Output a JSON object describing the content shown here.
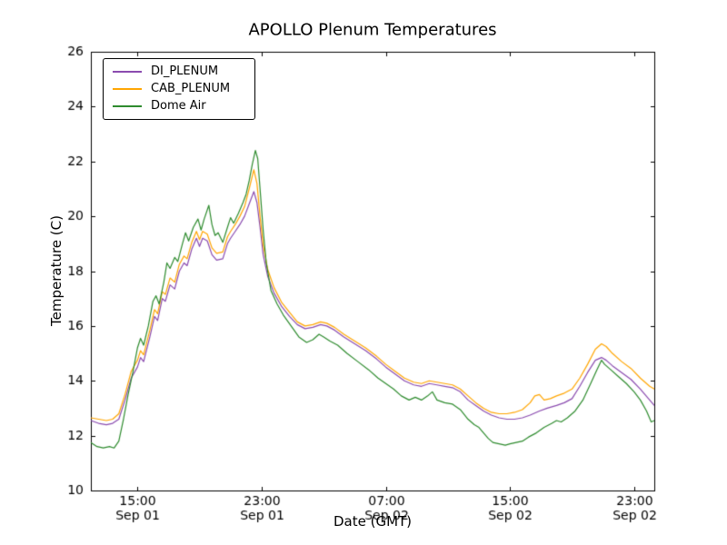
{
  "chart_data": {
    "type": "line",
    "title": "APOLLO Plenum Temperatures",
    "xlabel": "Date (GMT)",
    "ylabel": "Temperature (C)",
    "x_unit": "hours since Sep 01 12:00 GMT",
    "xlim": [
      0,
      36.3
    ],
    "ylim": [
      10,
      26
    ],
    "grid": false,
    "yticks": [
      10,
      12,
      14,
      16,
      18,
      20,
      22,
      24,
      26
    ],
    "xticks": [
      {
        "pos": 3,
        "time": "15:00",
        "date": "Sep 01"
      },
      {
        "pos": 11,
        "time": "23:00",
        "date": "Sep 01"
      },
      {
        "pos": 19,
        "time": "07:00",
        "date": "Sep 02"
      },
      {
        "pos": 27,
        "time": "15:00",
        "date": "Sep 02"
      },
      {
        "pos": 35,
        "time": "23:00",
        "date": "Sep 02"
      }
    ],
    "legend": {
      "position": "upper-left"
    },
    "series": [
      {
        "name": "DI_PLENUM",
        "color": "#8a4baf",
        "points": [
          [
            0,
            12.55
          ],
          [
            0.5,
            12.45
          ],
          [
            1,
            12.4
          ],
          [
            1.4,
            12.45
          ],
          [
            1.8,
            12.6
          ],
          [
            2.2,
            13.3
          ],
          [
            2.6,
            14.1
          ],
          [
            3,
            14.5
          ],
          [
            3.2,
            14.85
          ],
          [
            3.4,
            14.7
          ],
          [
            3.8,
            15.6
          ],
          [
            4.1,
            16.35
          ],
          [
            4.3,
            16.2
          ],
          [
            4.6,
            17.0
          ],
          [
            4.8,
            16.9
          ],
          [
            5.1,
            17.5
          ],
          [
            5.4,
            17.35
          ],
          [
            5.7,
            18.0
          ],
          [
            6,
            18.3
          ],
          [
            6.2,
            18.2
          ],
          [
            6.5,
            18.8
          ],
          [
            6.8,
            19.2
          ],
          [
            7,
            18.9
          ],
          [
            7.2,
            19.2
          ],
          [
            7.5,
            19.1
          ],
          [
            7.8,
            18.6
          ],
          [
            8.1,
            18.4
          ],
          [
            8.5,
            18.45
          ],
          [
            8.8,
            19.0
          ],
          [
            9,
            19.2
          ],
          [
            9.3,
            19.45
          ],
          [
            9.6,
            19.7
          ],
          [
            9.9,
            20.0
          ],
          [
            10.2,
            20.45
          ],
          [
            10.5,
            20.9
          ],
          [
            10.7,
            20.5
          ],
          [
            10.9,
            19.6
          ],
          [
            11.1,
            18.6
          ],
          [
            11.4,
            17.8
          ],
          [
            11.8,
            17.2
          ],
          [
            12.3,
            16.7
          ],
          [
            12.8,
            16.35
          ],
          [
            13.3,
            16.05
          ],
          [
            13.8,
            15.9
          ],
          [
            14.3,
            15.95
          ],
          [
            14.8,
            16.05
          ],
          [
            15.2,
            16.0
          ],
          [
            15.7,
            15.85
          ],
          [
            16.3,
            15.6
          ],
          [
            17,
            15.35
          ],
          [
            17.7,
            15.1
          ],
          [
            18.4,
            14.8
          ],
          [
            19,
            14.5
          ],
          [
            19.6,
            14.25
          ],
          [
            20.2,
            14.0
          ],
          [
            20.8,
            13.85
          ],
          [
            21.3,
            13.8
          ],
          [
            21.8,
            13.9
          ],
          [
            22.3,
            13.85
          ],
          [
            22.8,
            13.8
          ],
          [
            23.3,
            13.75
          ],
          [
            23.8,
            13.6
          ],
          [
            24.3,
            13.3
          ],
          [
            24.8,
            13.1
          ],
          [
            25.3,
            12.9
          ],
          [
            25.8,
            12.75
          ],
          [
            26.3,
            12.65
          ],
          [
            26.8,
            12.6
          ],
          [
            27.3,
            12.6
          ],
          [
            27.8,
            12.65
          ],
          [
            28.3,
            12.75
          ],
          [
            28.9,
            12.9
          ],
          [
            29.4,
            13.0
          ],
          [
            30,
            13.1
          ],
          [
            30.5,
            13.2
          ],
          [
            31,
            13.35
          ],
          [
            31.5,
            13.8
          ],
          [
            32,
            14.3
          ],
          [
            32.5,
            14.75
          ],
          [
            32.9,
            14.85
          ],
          [
            33.2,
            14.75
          ],
          [
            33.6,
            14.55
          ],
          [
            34.2,
            14.3
          ],
          [
            34.8,
            14.05
          ],
          [
            35.4,
            13.7
          ],
          [
            36,
            13.3
          ],
          [
            36.3,
            13.1
          ]
        ]
      },
      {
        "name": "CAB_PLENUM",
        "color": "#ffa500",
        "points": [
          [
            0,
            12.65
          ],
          [
            0.5,
            12.6
          ],
          [
            1,
            12.55
          ],
          [
            1.4,
            12.6
          ],
          [
            1.8,
            12.8
          ],
          [
            2.2,
            13.5
          ],
          [
            2.6,
            14.35
          ],
          [
            3,
            14.75
          ],
          [
            3.2,
            15.1
          ],
          [
            3.4,
            14.95
          ],
          [
            3.8,
            15.85
          ],
          [
            4.1,
            16.6
          ],
          [
            4.3,
            16.45
          ],
          [
            4.6,
            17.25
          ],
          [
            4.8,
            17.15
          ],
          [
            5.1,
            17.75
          ],
          [
            5.4,
            17.6
          ],
          [
            5.7,
            18.25
          ],
          [
            6,
            18.55
          ],
          [
            6.2,
            18.45
          ],
          [
            6.5,
            19.05
          ],
          [
            6.8,
            19.45
          ],
          [
            7,
            19.15
          ],
          [
            7.2,
            19.45
          ],
          [
            7.5,
            19.35
          ],
          [
            7.8,
            18.85
          ],
          [
            8.1,
            18.65
          ],
          [
            8.5,
            18.7
          ],
          [
            8.8,
            19.25
          ],
          [
            9,
            19.45
          ],
          [
            9.3,
            19.7
          ],
          [
            9.6,
            20.0
          ],
          [
            9.9,
            20.35
          ],
          [
            10.2,
            21.0
          ],
          [
            10.5,
            21.7
          ],
          [
            10.7,
            21.2
          ],
          [
            10.9,
            20.0
          ],
          [
            11.1,
            18.95
          ],
          [
            11.4,
            18.05
          ],
          [
            11.8,
            17.4
          ],
          [
            12.3,
            16.85
          ],
          [
            12.8,
            16.5
          ],
          [
            13.3,
            16.15
          ],
          [
            13.8,
            16.0
          ],
          [
            14.3,
            16.05
          ],
          [
            14.8,
            16.15
          ],
          [
            15.2,
            16.1
          ],
          [
            15.7,
            15.95
          ],
          [
            16.3,
            15.7
          ],
          [
            17,
            15.45
          ],
          [
            17.7,
            15.2
          ],
          [
            18.4,
            14.9
          ],
          [
            19,
            14.6
          ],
          [
            19.6,
            14.35
          ],
          [
            20.2,
            14.1
          ],
          [
            20.8,
            13.95
          ],
          [
            21.3,
            13.9
          ],
          [
            21.8,
            14.0
          ],
          [
            22.3,
            13.95
          ],
          [
            22.8,
            13.9
          ],
          [
            23.3,
            13.85
          ],
          [
            23.8,
            13.7
          ],
          [
            24.3,
            13.45
          ],
          [
            24.8,
            13.2
          ],
          [
            25.3,
            13.0
          ],
          [
            25.8,
            12.85
          ],
          [
            26.3,
            12.8
          ],
          [
            26.8,
            12.8
          ],
          [
            27.3,
            12.85
          ],
          [
            27.8,
            12.95
          ],
          [
            28.3,
            13.2
          ],
          [
            28.6,
            13.45
          ],
          [
            28.9,
            13.5
          ],
          [
            29.2,
            13.3
          ],
          [
            29.6,
            13.35
          ],
          [
            30,
            13.45
          ],
          [
            30.5,
            13.55
          ],
          [
            31,
            13.7
          ],
          [
            31.5,
            14.1
          ],
          [
            32,
            14.6
          ],
          [
            32.5,
            15.15
          ],
          [
            32.9,
            15.35
          ],
          [
            33.2,
            15.25
          ],
          [
            33.6,
            15.0
          ],
          [
            34.2,
            14.7
          ],
          [
            34.8,
            14.45
          ],
          [
            35.4,
            14.1
          ],
          [
            36,
            13.8
          ],
          [
            36.3,
            13.7
          ]
        ]
      },
      {
        "name": "Dome Air",
        "color": "#2e8b2e",
        "points": [
          [
            0,
            11.75
          ],
          [
            0.4,
            11.6
          ],
          [
            0.8,
            11.55
          ],
          [
            1.2,
            11.6
          ],
          [
            1.5,
            11.55
          ],
          [
            1.8,
            11.8
          ],
          [
            2.1,
            12.6
          ],
          [
            2.4,
            13.5
          ],
          [
            2.7,
            14.3
          ],
          [
            3,
            15.2
          ],
          [
            3.2,
            15.55
          ],
          [
            3.4,
            15.3
          ],
          [
            3.7,
            16.0
          ],
          [
            4,
            16.9
          ],
          [
            4.2,
            17.1
          ],
          [
            4.4,
            16.8
          ],
          [
            4.7,
            17.6
          ],
          [
            4.9,
            18.3
          ],
          [
            5.1,
            18.1
          ],
          [
            5.4,
            18.5
          ],
          [
            5.6,
            18.35
          ],
          [
            5.9,
            19.0
          ],
          [
            6.1,
            19.4
          ],
          [
            6.3,
            19.1
          ],
          [
            6.6,
            19.6
          ],
          [
            6.9,
            19.9
          ],
          [
            7.1,
            19.5
          ],
          [
            7.3,
            19.9
          ],
          [
            7.6,
            20.4
          ],
          [
            7.8,
            19.7
          ],
          [
            8,
            19.3
          ],
          [
            8.2,
            19.4
          ],
          [
            8.5,
            19.05
          ],
          [
            8.8,
            19.6
          ],
          [
            9,
            19.95
          ],
          [
            9.2,
            19.75
          ],
          [
            9.5,
            20.1
          ],
          [
            9.8,
            20.5
          ],
          [
            10,
            20.8
          ],
          [
            10.2,
            21.3
          ],
          [
            10.4,
            21.9
          ],
          [
            10.6,
            22.4
          ],
          [
            10.75,
            22.1
          ],
          [
            10.9,
            21.0
          ],
          [
            11.1,
            19.5
          ],
          [
            11.3,
            18.3
          ],
          [
            11.6,
            17.3
          ],
          [
            12,
            16.8
          ],
          [
            12.4,
            16.4
          ],
          [
            12.9,
            16.0
          ],
          [
            13.4,
            15.6
          ],
          [
            13.9,
            15.4
          ],
          [
            14.3,
            15.5
          ],
          [
            14.7,
            15.7
          ],
          [
            15,
            15.6
          ],
          [
            15.4,
            15.45
          ],
          [
            15.9,
            15.3
          ],
          [
            16.5,
            15.0
          ],
          [
            17.2,
            14.7
          ],
          [
            17.9,
            14.4
          ],
          [
            18.5,
            14.1
          ],
          [
            19,
            13.9
          ],
          [
            19.5,
            13.7
          ],
          [
            20,
            13.45
          ],
          [
            20.5,
            13.3
          ],
          [
            20.9,
            13.4
          ],
          [
            21.3,
            13.3
          ],
          [
            21.7,
            13.45
          ],
          [
            22,
            13.6
          ],
          [
            22.3,
            13.3
          ],
          [
            22.8,
            13.2
          ],
          [
            23.3,
            13.15
          ],
          [
            23.8,
            12.95
          ],
          [
            24.3,
            12.6
          ],
          [
            24.7,
            12.4
          ],
          [
            25,
            12.3
          ],
          [
            25.3,
            12.1
          ],
          [
            25.6,
            11.9
          ],
          [
            25.9,
            11.75
          ],
          [
            26.3,
            11.7
          ],
          [
            26.7,
            11.65
          ],
          [
            27,
            11.7
          ],
          [
            27.4,
            11.75
          ],
          [
            27.8,
            11.8
          ],
          [
            28.2,
            11.95
          ],
          [
            28.7,
            12.1
          ],
          [
            29.2,
            12.3
          ],
          [
            29.7,
            12.45
          ],
          [
            30,
            12.55
          ],
          [
            30.3,
            12.5
          ],
          [
            30.7,
            12.65
          ],
          [
            31.2,
            12.9
          ],
          [
            31.7,
            13.3
          ],
          [
            32.2,
            13.9
          ],
          [
            32.6,
            14.4
          ],
          [
            32.9,
            14.75
          ],
          [
            33.1,
            14.6
          ],
          [
            33.5,
            14.4
          ],
          [
            34,
            14.15
          ],
          [
            34.5,
            13.9
          ],
          [
            35,
            13.6
          ],
          [
            35.4,
            13.3
          ],
          [
            35.8,
            12.9
          ],
          [
            36.1,
            12.5
          ],
          [
            36.3,
            12.55
          ]
        ]
      }
    ]
  }
}
